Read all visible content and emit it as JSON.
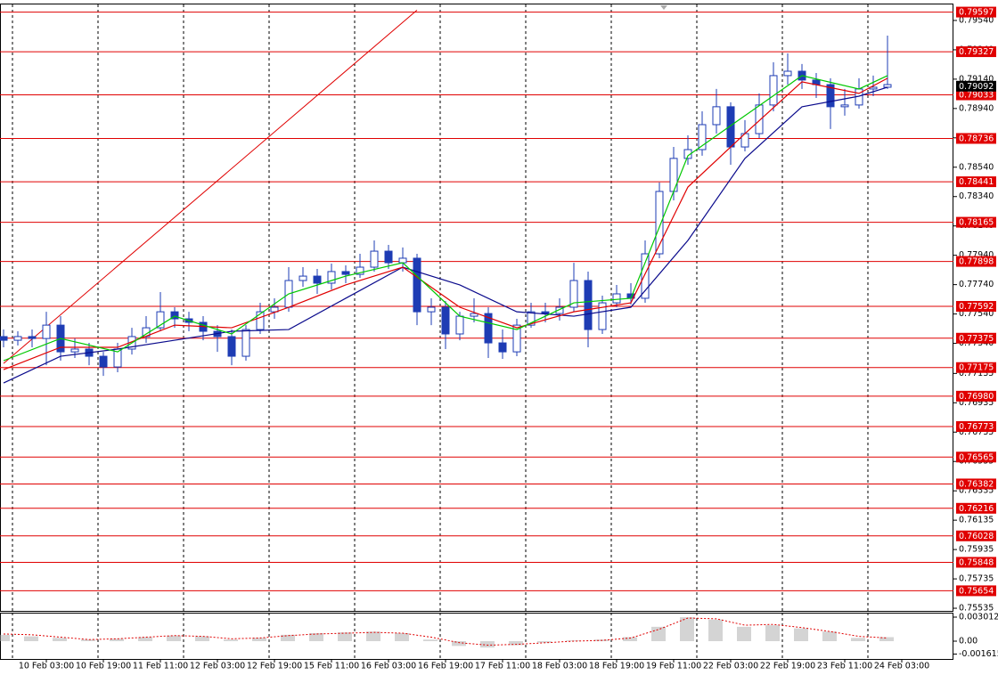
{
  "chart_data": {
    "type": "candlestick",
    "categories": [
      null,
      null,
      null,
      "10 Feb 03:00",
      null,
      null,
      null,
      "10 Feb 19:00",
      null,
      null,
      null,
      "11 Feb 11:00",
      null,
      null,
      null,
      "12 Feb 03:00",
      null,
      null,
      null,
      "12 Feb 19:00",
      null,
      null,
      null,
      "15 Feb 11:00",
      null,
      null,
      null,
      "16 Feb 03:00",
      null,
      null,
      null,
      "16 Feb 19:00",
      null,
      null,
      null,
      "17 Feb 11:00",
      null,
      null,
      null,
      "18 Feb 03:00",
      null,
      null,
      null,
      "18 Feb 19:00",
      null,
      null,
      null,
      "19 Feb 11:00",
      null,
      null,
      null,
      "22 Feb 03:00",
      null,
      null,
      null,
      "22 Feb 19:00",
      null,
      null,
      null,
      "23 Feb 11:00",
      null,
      null,
      null,
      "24 Feb 03:00"
    ],
    "ohlc": [
      [
        0.77386,
        0.77434,
        0.77313,
        0.77361
      ],
      [
        0.77361,
        0.77422,
        0.77325,
        0.77386
      ],
      [
        0.77386,
        0.77434,
        0.77313,
        0.77373
      ],
      [
        0.77373,
        0.77555,
        0.77191,
        0.77464
      ],
      [
        0.77464,
        0.77525,
        0.77222,
        0.77282
      ],
      [
        0.77282,
        0.77373,
        0.7724,
        0.77301
      ],
      [
        0.77301,
        0.77343,
        0.77191,
        0.77252
      ],
      [
        0.77252,
        0.77282,
        0.77118,
        0.77179
      ],
      [
        0.77179,
        0.77343,
        0.77143,
        0.77301
      ],
      [
        0.77301,
        0.77446,
        0.77264,
        0.77386
      ],
      [
        0.77386,
        0.77525,
        0.77343,
        0.77446
      ],
      [
        0.77446,
        0.77689,
        0.77422,
        0.77555
      ],
      [
        0.77555,
        0.77586,
        0.77446,
        0.77507
      ],
      [
        0.77507,
        0.77555,
        0.77422,
        0.77483
      ],
      [
        0.77483,
        0.77525,
        0.77361,
        0.77422
      ],
      [
        0.77422,
        0.77464,
        0.77282,
        0.77386
      ],
      [
        0.77386,
        0.77434,
        0.77191,
        0.77252
      ],
      [
        0.77252,
        0.77464,
        0.77222,
        0.77434
      ],
      [
        0.77434,
        0.77616,
        0.77404,
        0.77555
      ],
      [
        0.77555,
        0.77647,
        0.77507,
        0.77586
      ],
      [
        0.77586,
        0.77859,
        0.77555,
        0.77768
      ],
      [
        0.77768,
        0.77859,
        0.77725,
        0.77798
      ],
      [
        0.77798,
        0.77847,
        0.77677,
        0.7775
      ],
      [
        0.7775,
        0.77883,
        0.77707,
        0.77829
      ],
      [
        0.77829,
        0.77871,
        0.7775,
        0.7781
      ],
      [
        0.7781,
        0.7795,
        0.77786,
        0.77859
      ],
      [
        0.77859,
        0.78041,
        0.77829,
        0.77968
      ],
      [
        0.77968,
        0.78011,
        0.77847,
        0.77889
      ],
      [
        0.77889,
        0.77993,
        0.77829,
        0.7792
      ],
      [
        0.7792,
        0.7795,
        0.77464,
        0.77555
      ],
      [
        0.77555,
        0.77647,
        0.77464,
        0.77586
      ],
      [
        0.77586,
        0.77628,
        0.77301,
        0.77404
      ],
      [
        0.77404,
        0.77555,
        0.77361,
        0.77525
      ],
      [
        0.77525,
        0.77647,
        0.77483,
        0.77543
      ],
      [
        0.77543,
        0.77586,
        0.7724,
        0.77343
      ],
      [
        0.77343,
        0.77434,
        0.77234,
        0.77282
      ],
      [
        0.77282,
        0.77507,
        0.77252,
        0.77464
      ],
      [
        0.77464,
        0.77616,
        0.77446,
        0.77555
      ],
      [
        0.77555,
        0.77616,
        0.77483,
        0.77543
      ],
      [
        0.77543,
        0.77647,
        0.77495,
        0.77586
      ],
      [
        0.77586,
        0.77889,
        0.77555,
        0.77768
      ],
      [
        0.77768,
        0.77829,
        0.77313,
        0.77434
      ],
      [
        0.77434,
        0.77665,
        0.77404,
        0.77616
      ],
      [
        0.77616,
        0.77738,
        0.77586,
        0.77677
      ],
      [
        0.77677,
        0.7775,
        0.77604,
        0.77647
      ],
      [
        0.77647,
        0.78041,
        0.77616,
        0.7795
      ],
      [
        0.7795,
        0.78436,
        0.7792,
        0.78375
      ],
      [
        0.78375,
        0.78678,
        0.78314,
        0.786
      ],
      [
        0.786,
        0.78757,
        0.78557,
        0.7866
      ],
      [
        0.7866,
        0.78921,
        0.78618,
        0.7883
      ],
      [
        0.7883,
        0.79073,
        0.78769,
        0.78952
      ],
      [
        0.78952,
        0.78982,
        0.78557,
        0.78678
      ],
      [
        0.78678,
        0.78861,
        0.78648,
        0.78769
      ],
      [
        0.78769,
        0.79043,
        0.78739,
        0.78964
      ],
      [
        0.78964,
        0.79255,
        0.78921,
        0.79164
      ],
      [
        0.79164,
        0.79316,
        0.79103,
        0.79194
      ],
      [
        0.79194,
        0.79243,
        0.79073,
        0.79134
      ],
      [
        0.79134,
        0.79182,
        0.79012,
        0.79103
      ],
      [
        0.79103,
        0.79146,
        0.788,
        0.78952
      ],
      [
        0.78952,
        0.79073,
        0.78891,
        0.78964
      ],
      [
        0.78964,
        0.79146,
        0.78939,
        0.79073
      ],
      [
        0.79073,
        0.79164,
        0.79024,
        0.79085
      ],
      [
        0.79085,
        0.79437,
        0.79073,
        0.79103
      ],
      null
    ],
    "color": "#1e3cb4",
    "ylim": [
      0.75517,
      0.79649
    ],
    "yticks": [
      {
        "value": 0.7954,
        "label": "0.79540"
      },
      {
        "value": 0.7934,
        "label": "0.79340"
      },
      {
        "value": 0.7914,
        "label": "0.79140"
      },
      {
        "value": 0.7894,
        "label": "0.78940"
      },
      {
        "value": 0.7874,
        "label": "0.78740"
      },
      {
        "value": 0.7854,
        "label": "0.78540"
      },
      {
        "value": 0.7834,
        "label": "0.78340"
      },
      {
        "value": 0.7814,
        "label": "0.78140"
      },
      {
        "value": 0.7794,
        "label": "0.77940"
      },
      {
        "value": 0.7774,
        "label": "0.77740"
      },
      {
        "value": 0.7754,
        "label": "0.77540"
      },
      {
        "value": 0.7734,
        "label": "0.77340"
      },
      0.77135,
      0.76935,
      0.76735,
      0.76535,
      0.76335,
      0.76135,
      0.75935,
      0.75735,
      0.75535
    ],
    "levels": [
      0.79597,
      0.79327,
      0.79033,
      0.78736,
      0.78441,
      0.78165,
      0.77898,
      0.77592,
      0.77375,
      0.77175,
      {
        "value": 0.7698,
        "label": "0.76980"
      },
      0.76773,
      0.76565,
      0.76382,
      0.76216,
      0.76028,
      0.75848,
      0.75654
    ],
    "level_color": "#e00000",
    "bid": 0.79092,
    "trendline": {
      "x": [
        0,
        29
      ],
      "values": [
        0.77203,
        0.7961
      ],
      "color": "#e00000"
    },
    "ma": [
      {
        "color": "#0a0a8c",
        "x": [
          0,
          4,
          8,
          12,
          16,
          20,
          24,
          28,
          32,
          36,
          40,
          44,
          48,
          52,
          56,
          60,
          62
        ],
        "values": [
          0.7707,
          0.77252,
          0.77301,
          0.77361,
          0.77422,
          0.77434,
          0.77647,
          0.77859,
          0.77738,
          0.77555,
          0.77525,
          0.77586,
          0.78041,
          0.786,
          0.78952,
          0.79024,
          0.79085
        ]
      },
      {
        "color": "#e00000",
        "x": [
          0,
          4,
          8,
          12,
          16,
          20,
          24,
          28,
          32,
          36,
          40,
          44,
          48,
          52,
          56,
          60,
          62
        ],
        "values": [
          0.77161,
          0.77313,
          0.77313,
          0.77464,
          0.77446,
          0.77586,
          0.77738,
          0.77859,
          0.77586,
          0.77446,
          0.77555,
          0.77616,
          0.78405,
          0.78769,
          0.79122,
          0.79043,
          0.79146
        ]
      },
      {
        "color": "#00c800",
        "x": [
          0,
          4,
          8,
          12,
          16,
          20,
          24,
          28,
          32,
          36,
          40,
          44,
          48,
          52,
          56,
          60,
          62
        ],
        "values": [
          0.77222,
          0.77373,
          0.77282,
          0.77525,
          0.77404,
          0.77677,
          0.77798,
          0.77889,
          0.77525,
          0.77434,
          0.77616,
          0.77647,
          0.78618,
          0.78891,
          0.79164,
          0.79073,
          0.79164
        ]
      }
    ],
    "oscillator": {
      "x": [
        0,
        2,
        4,
        6,
        8,
        10,
        12,
        14,
        16,
        18,
        20,
        22,
        24,
        26,
        28,
        30,
        32,
        34,
        36,
        38,
        40,
        42,
        44,
        46,
        48,
        50,
        52,
        54,
        56,
        58,
        60,
        62
      ],
      "histogram": [
        0.0008,
        0.0006,
        0.0004,
        0.0002,
        0.0003,
        0.0005,
        0.0007,
        0.0006,
        0.0002,
        0.0004,
        0.0008,
        0.001,
        0.0011,
        0.0012,
        0.001,
        0.0002,
        -0.0006,
        -0.0008,
        -0.0005,
        -0.0002,
        0.0001,
        0.0002,
        0.0005,
        0.0018,
        0.003,
        0.0027,
        0.0018,
        0.002,
        0.0016,
        0.0012,
        0.0004,
        0.0005
      ],
      "signal": [
        0.0009,
        0.0008,
        0.0005,
        0.0002,
        0.0003,
        0.0005,
        0.0007,
        0.0006,
        0.0003,
        0.0004,
        0.0007,
        0.0009,
        0.001,
        0.0011,
        0.001,
        0.0005,
        -0.0002,
        -0.0005,
        -0.0004,
        -0.0002,
        0,
        0.0001,
        0.0004,
        0.0015,
        0.0029,
        0.0028,
        0.002,
        0.0021,
        0.0017,
        0.0012,
        0.0006,
        0.0004
      ],
      "histogram_color": "#a8a8a8",
      "signal_color": "#e00000",
      "ylim": [
        -0.00223,
        0.00357
      ],
      "yticks": [
        0.003012,
        {
          "value": 0,
          "label": "0.00"
        },
        -0.001615
      ]
    }
  }
}
